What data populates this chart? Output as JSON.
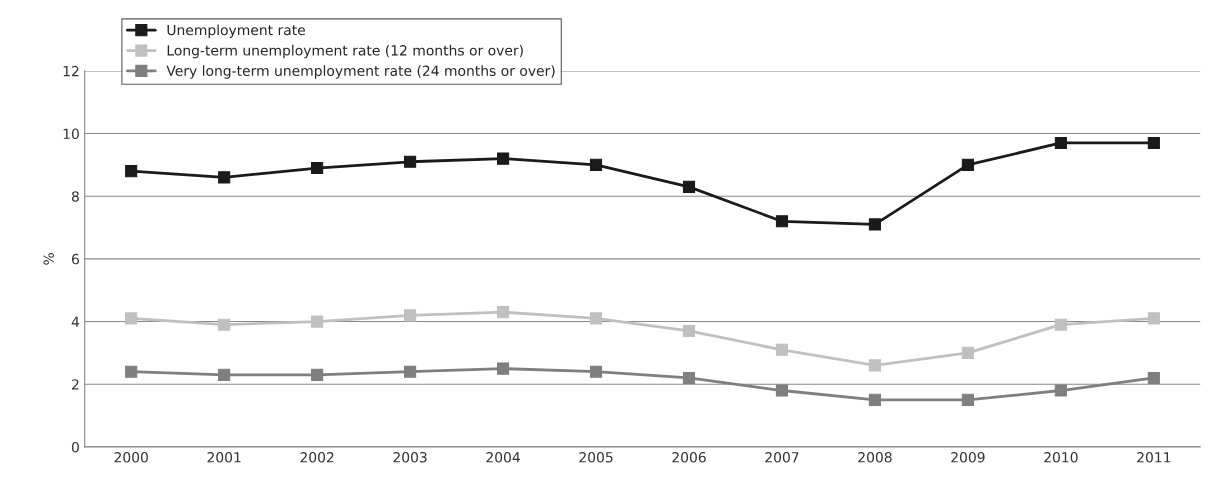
{
  "chart_data": {
    "type": "line",
    "ylabel": "%",
    "categories": [
      "2000",
      "2001",
      "2002",
      "2003",
      "2004",
      "2005",
      "2006",
      "2007",
      "2008",
      "2009",
      "2010",
      "2011"
    ],
    "series": [
      {
        "name": "Unemployment rate",
        "color": "#1a1a1a",
        "values": [
          8.8,
          8.6,
          8.9,
          9.1,
          9.2,
          9.0,
          8.3,
          7.2,
          7.1,
          9.0,
          9.7,
          9.7
        ]
      },
      {
        "name": "Long-term unemployment rate (12 months or over)",
        "color": "#c0c0c0",
        "values": [
          4.1,
          3.9,
          4.0,
          4.2,
          4.3,
          4.1,
          3.7,
          3.1,
          2.6,
          3.0,
          3.9,
          4.1
        ]
      },
      {
        "name": "Very long-term unemployment rate (24 months or over)",
        "color": "#7f7f7f",
        "values": [
          2.4,
          2.3,
          2.3,
          2.4,
          2.5,
          2.4,
          2.2,
          1.8,
          1.5,
          1.5,
          1.8,
          2.2
        ]
      }
    ],
    "ylim": [
      0,
      12
    ],
    "yticks": [
      0,
      2,
      4,
      6,
      8,
      10,
      12
    ],
    "grid": "y",
    "legend": "top left",
    "marker": "square",
    "line_style": "solid"
  }
}
